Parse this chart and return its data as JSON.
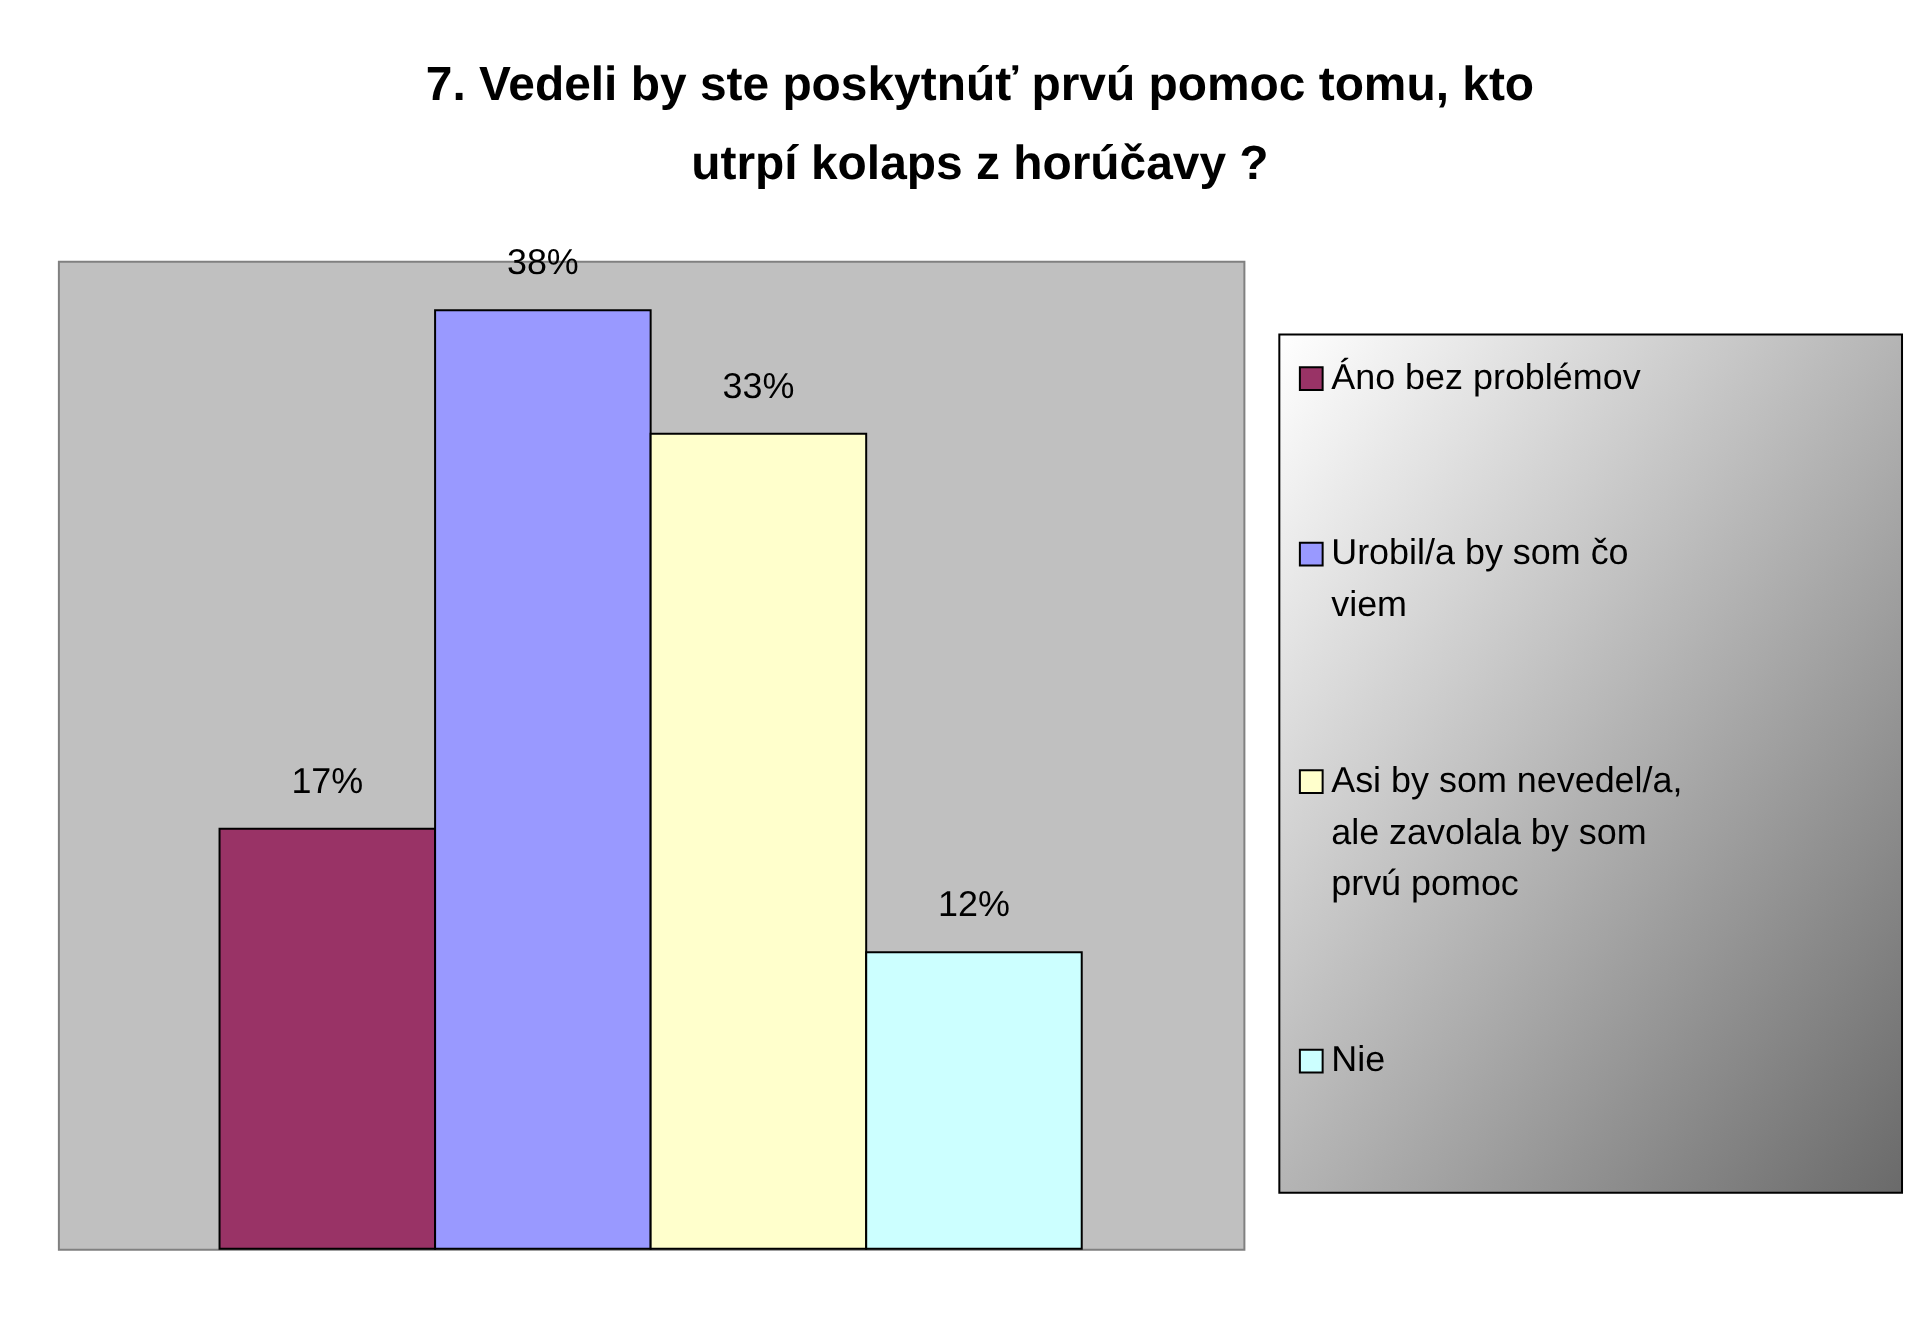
{
  "chart_data": {
    "type": "bar",
    "title": "7. Vedeli by ste poskytnúť prvú pomoc tomu, kto utrpí kolaps z horúčavy ?",
    "categories": [
      null
    ],
    "series": [
      {
        "name": "Áno bez problémov",
        "color": "#993366",
        "values": [
          17
        ],
        "value_labels": [
          "17%"
        ]
      },
      {
        "name": "Urobil/a by som čo viem",
        "color": "#9999ff",
        "values": [
          38
        ],
        "value_labels": [
          "38%"
        ]
      },
      {
        "name": "Asi by som nevedel/a, ale zavolala by som prvú pomoc",
        "color": "#ffffcc",
        "values": [
          33
        ],
        "value_labels": [
          "33%"
        ]
      },
      {
        "name": "Nie",
        "color": "#ccffff",
        "values": [
          12
        ],
        "value_labels": [
          "12%"
        ]
      }
    ],
    "ylim": [
      0,
      40
    ],
    "legend": "right"
  }
}
